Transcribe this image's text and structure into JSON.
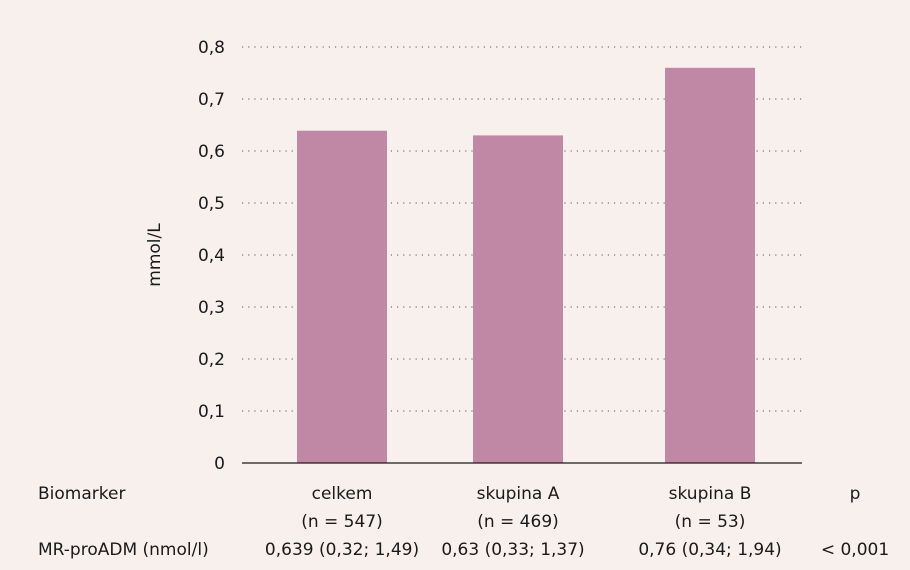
{
  "colors": {
    "background": "#f8f0ec",
    "bar": "#c088a4",
    "grid": "#555555",
    "axis": "#1a1a1a"
  },
  "chart_data": {
    "type": "bar",
    "title": "",
    "xlabel": "",
    "ylabel": "mmol/L",
    "ylim": [
      0,
      0.8
    ],
    "yticks": [
      "0",
      "0,1",
      "0,2",
      "0,3",
      "0,4",
      "0,5",
      "0,6",
      "0,7",
      "0,8"
    ],
    "grid": "horizontal dotted",
    "categories": [
      "celkem",
      "skupina A",
      "skupina B"
    ],
    "values": [
      0.639,
      0.63,
      0.76
    ]
  },
  "table": {
    "header_label": "Biomarker",
    "columns": [
      {
        "name": "celkem",
        "n": "(n = 547)"
      },
      {
        "name": "skupina A",
        "n": "(n = 469)"
      },
      {
        "name": "skupina B",
        "n": "(n = 53)"
      }
    ],
    "p_header": "p",
    "row": {
      "label": "MR-proADM (nmol/l)",
      "values": [
        "0,639 (0,32; 1,49)",
        "0,63 (0,33; 1,37)",
        "0,76 (0,34; 1,94)"
      ],
      "p_value": "< 0,001"
    }
  }
}
